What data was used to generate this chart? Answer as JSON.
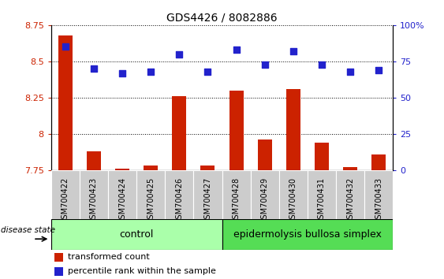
{
  "title": "GDS4426 / 8082886",
  "samples": [
    "GSM700422",
    "GSM700423",
    "GSM700424",
    "GSM700425",
    "GSM700426",
    "GSM700427",
    "GSM700428",
    "GSM700429",
    "GSM700430",
    "GSM700431",
    "GSM700432",
    "GSM700433"
  ],
  "transformed_count": [
    8.68,
    7.88,
    7.76,
    7.78,
    8.26,
    7.78,
    8.3,
    7.96,
    8.31,
    7.94,
    7.77,
    7.86
  ],
  "percentile_rank": [
    85,
    70,
    67,
    68,
    80,
    68,
    83,
    73,
    82,
    73,
    68,
    69
  ],
  "ylim_left": [
    7.75,
    8.75
  ],
  "ylim_right": [
    0,
    100
  ],
  "yticks_left": [
    7.75,
    8.0,
    8.25,
    8.5,
    8.75
  ],
  "yticks_right": [
    0,
    25,
    50,
    75,
    100
  ],
  "ytick_labels_left": [
    "7.75",
    "8",
    "8.25",
    "8.5",
    "8.75"
  ],
  "ytick_labels_right": [
    "0",
    "25",
    "50",
    "75",
    "100%"
  ],
  "bar_color": "#cc2200",
  "dot_color": "#2222cc",
  "bar_bottom": 7.75,
  "control_samples": 6,
  "control_label": "control",
  "disease_label": "epidermolysis bullosa simplex",
  "group_label": "disease state",
  "legend_bar": "transformed count",
  "legend_dot": "percentile rank within the sample",
  "control_color": "#aaffaa",
  "disease_color": "#55dd55",
  "grid_color": "#000000",
  "tick_label_color_left": "#cc2200",
  "tick_label_color_right": "#2222cc",
  "bar_width": 0.5,
  "dot_size": 28,
  "bg_color": "#cccccc"
}
